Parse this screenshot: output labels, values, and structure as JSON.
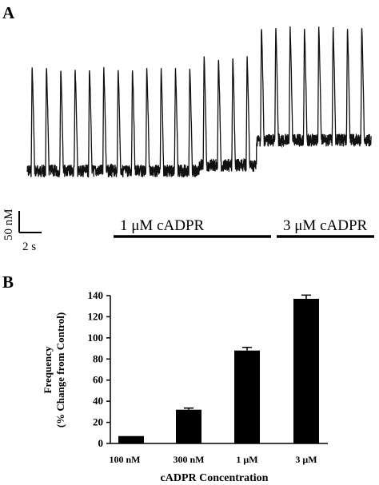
{
  "chart_data": [
    {
      "panel": "A",
      "type": "line",
      "description_label": "",
      "scale_bar": {
        "y_label": "50 nM",
        "x_label": "2 s"
      },
      "conditions": [
        {
          "label": "1 μM cADPR"
        },
        {
          "label": "3 μM cADPR"
        }
      ],
      "segments": [
        {
          "spikes": 12,
          "baseline": 0,
          "amplitude": 1.0
        },
        {
          "spikes": 4,
          "baseline": 0.1,
          "amplitude": 1.05
        },
        {
          "spikes": 8,
          "baseline": 0.55,
          "amplitude": 1.1
        }
      ]
    },
    {
      "panel": "B",
      "type": "bar",
      "categories": [
        "100 nM",
        "300 nM",
        "1 μM",
        "3 μM"
      ],
      "values": [
        7,
        32,
        88,
        137
      ],
      "errors": [
        0,
        1.5,
        3,
        3.5
      ],
      "xlabel": "cADPR Concentration",
      "ylabel": "Frequency",
      "ylabel2": "(% Change from Control)",
      "ylim": [
        0,
        140
      ],
      "yticks": [
        0,
        20,
        40,
        60,
        80,
        100,
        120,
        140
      ],
      "bar_color": "#000000"
    }
  ]
}
